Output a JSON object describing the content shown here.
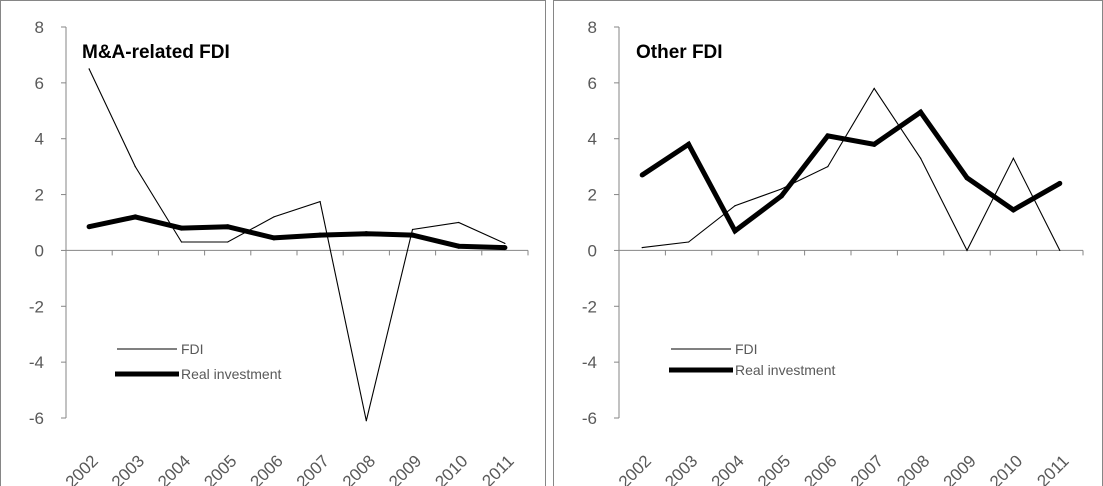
{
  "chart_data": [
    {
      "type": "line",
      "title": "M&A-related FDI",
      "categories": [
        "2002",
        "2003",
        "2004",
        "2005",
        "2006",
        "2007",
        "2008",
        "2009",
        "2010",
        "2011"
      ],
      "ylim": [
        -6,
        8
      ],
      "yticks": [
        "8",
        "6",
        "4",
        "2",
        "0",
        "-2",
        "-4",
        "-6"
      ],
      "grid": false,
      "legend_position": "lower-left",
      "series": [
        {
          "name": "FDI",
          "values": [
            6.5,
            3.0,
            0.3,
            0.3,
            1.2,
            1.75,
            -6.1,
            0.75,
            1.0,
            0.25
          ]
        },
        {
          "name": "Real investment",
          "values": [
            0.85,
            1.2,
            0.8,
            0.85,
            0.45,
            0.55,
            0.6,
            0.55,
            0.15,
            0.1
          ]
        }
      ]
    },
    {
      "type": "line",
      "title": "Other FDI",
      "categories": [
        "2002",
        "2003",
        "2004",
        "2005",
        "2006",
        "2007",
        "2008",
        "2009",
        "2010",
        "2011"
      ],
      "ylim": [
        -6,
        8
      ],
      "yticks": [
        "8",
        "6",
        "4",
        "2",
        "0",
        "-2",
        "-4",
        "-6"
      ],
      "grid": false,
      "legend_position": "lower-left",
      "series": [
        {
          "name": "FDI",
          "values": [
            0.1,
            0.3,
            1.6,
            2.2,
            3.0,
            5.8,
            3.3,
            0.0,
            3.3,
            0.0
          ]
        },
        {
          "name": "Real investment",
          "values": [
            2.7,
            3.8,
            0.7,
            1.95,
            4.1,
            3.8,
            4.95,
            2.6,
            1.45,
            2.4
          ]
        }
      ]
    }
  ],
  "colors": {
    "fdi": "#000000",
    "real_investment": "#000000",
    "axis": "#868686",
    "border": "#868686"
  }
}
